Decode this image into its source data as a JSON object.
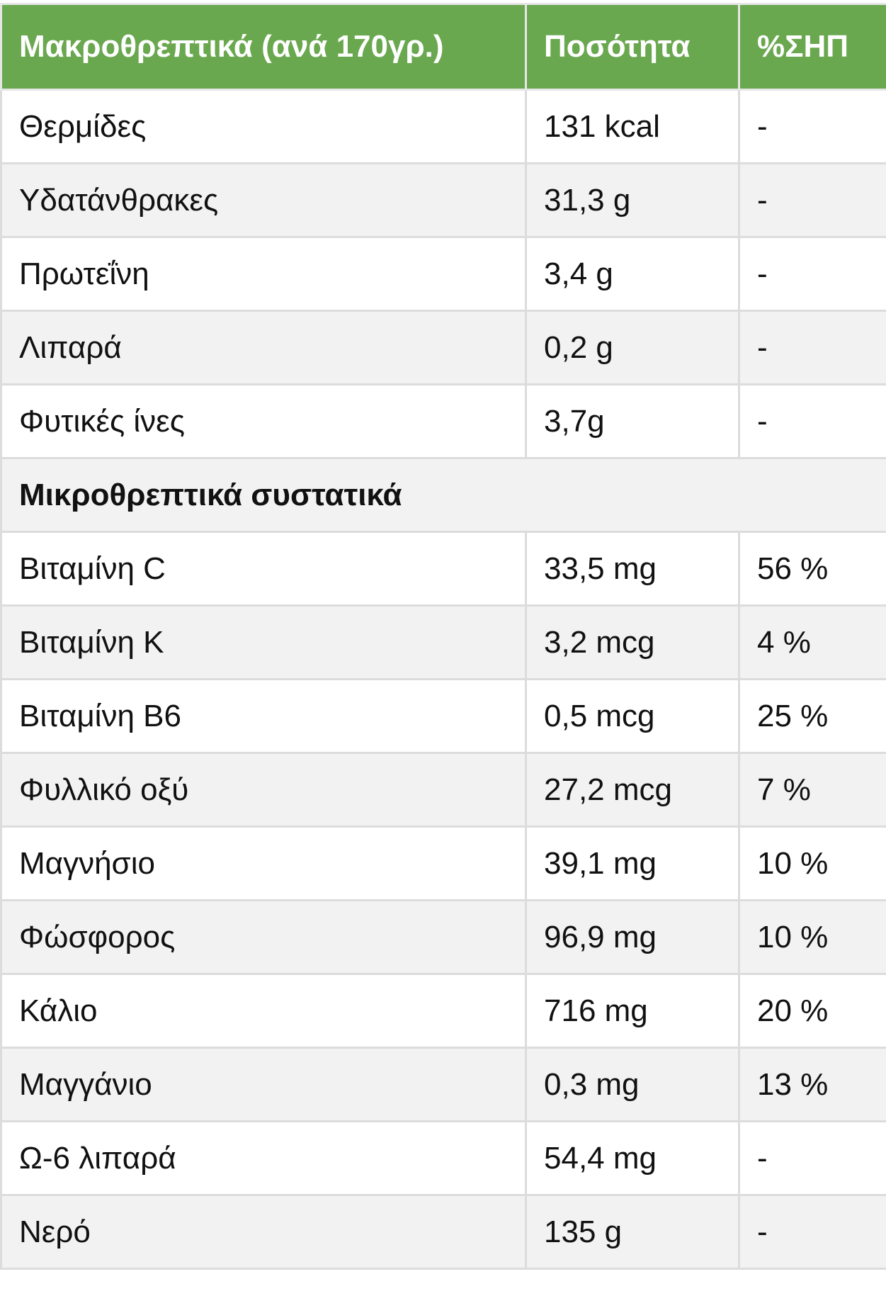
{
  "colors": {
    "header_bg": "#6aa84f",
    "header_text": "#ffffff",
    "row_alt": "#f2f2f2",
    "border": "#dcdcdc"
  },
  "header": {
    "col1": "Μακροθρεπτικά (ανά 170γρ.)",
    "col2": "Ποσότητα",
    "col3": "%ΣΗΠ"
  },
  "macros": [
    {
      "name": "Θερμίδες",
      "amount": "131 kcal",
      "dv": "-"
    },
    {
      "name": "Υδατάνθρακες",
      "amount": "31,3 g",
      "dv": "-"
    },
    {
      "name": "Πρωτεΐνη",
      "amount": "3,4 g",
      "dv": "-"
    },
    {
      "name": "Λιπαρά",
      "amount": "0,2 g",
      "dv": "-"
    },
    {
      "name": "Φυτικές ίνες",
      "amount": "3,7g",
      "dv": "-"
    }
  ],
  "section_title": "Μικροθρεπτικά συστατικά",
  "micros": [
    {
      "name": "Βιταμίνη C",
      "amount": "33,5 mg",
      "dv": "56 %"
    },
    {
      "name": "Βιταμίνη K",
      "amount": "3,2 mcg",
      "dv": "4 %"
    },
    {
      "name": "Βιταμίνη B6",
      "amount": "0,5 mcg",
      "dv": "25 %"
    },
    {
      "name": "Φυλλικό οξύ",
      "amount": "27,2 mcg",
      "dv": "7 %"
    },
    {
      "name": "Μαγνήσιο",
      "amount": "39,1 mg",
      "dv": "10 %"
    },
    {
      "name": "Φώσφορος",
      "amount": "96,9 mg",
      "dv": "10 %"
    },
    {
      "name": "Κάλιο",
      "amount": "716 mg",
      "dv": "20 %"
    },
    {
      "name": "Μαγγάνιο",
      "amount": "0,3 mg",
      "dv": "13 %"
    },
    {
      "name": "Ω-6 λιπαρά",
      "amount": "54,4 mg",
      "dv": "-"
    },
    {
      "name": "Νερό",
      "amount": "135 g",
      "dv": "-"
    }
  ]
}
